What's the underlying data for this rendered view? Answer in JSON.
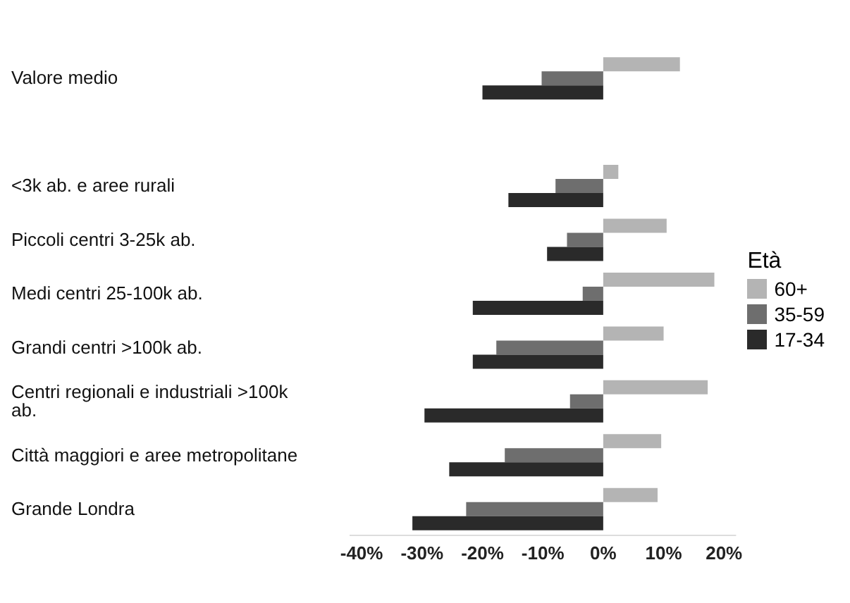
{
  "chart_data": {
    "type": "bar",
    "orientation": "horizontal",
    "categories": [
      "Valore medio",
      null,
      "<3k ab. e aree rurali",
      "Piccoli centri 3-25k ab.",
      "Medi centri 25-100k ab.",
      "Grandi centri >100k ab.",
      "Centri regionali e industriali >100k ab.",
      "Città maggiori e aree metropolitane",
      "Grande Londra"
    ],
    "series": [
      {
        "name": "60+",
        "color": "#b4b4b4",
        "values": [
          12.7,
          null,
          2.5,
          10.5,
          18.4,
          10,
          17.3,
          9.6,
          9
        ]
      },
      {
        "name": "35-59",
        "color": "#6e6e6e",
        "values": [
          -10.2,
          null,
          -7.9,
          -6,
          -3.4,
          -17.7,
          -5.5,
          -16.3,
          -22.7
        ]
      },
      {
        "name": "17-34",
        "color": "#2a2a2a",
        "values": [
          -20,
          null,
          -15.7,
          -9.3,
          -21.6,
          -21.6,
          -29.6,
          -25.5,
          -31.6
        ]
      }
    ],
    "xlim": [
      -42,
      22
    ],
    "xticks": [
      {
        "value": -40,
        "label": "-40%"
      },
      {
        "value": -30,
        "label": "-30%"
      },
      {
        "value": -20,
        "label": "-20%"
      },
      {
        "value": -10,
        "label": "-10%"
      },
      {
        "value": 0,
        "label": "0%"
      },
      {
        "value": 10,
        "label": "10%"
      },
      {
        "value": 20,
        "label": "20%"
      }
    ],
    "legend_title": "Età",
    "legend": "right",
    "grid": false
  }
}
